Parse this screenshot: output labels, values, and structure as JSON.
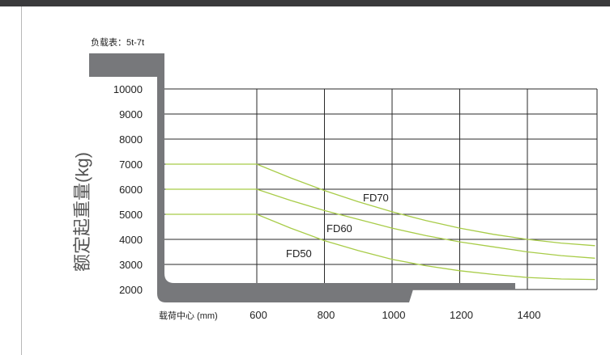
{
  "caption": "负载表：5t-7t",
  "chart_data": {
    "type": "line",
    "title": "",
    "ylabel": "额定起重量(kg)",
    "xlabel": "载荷中心 (mm)",
    "x_ticks": [
      600,
      800,
      1000,
      1200,
      1400
    ],
    "y_ticks": [
      10000,
      9000,
      8000,
      7000,
      6000,
      5000,
      4000,
      3000,
      2000
    ],
    "xlim": [
      330,
      1600
    ],
    "ylim": [
      2000,
      10000
    ],
    "grid": true,
    "series": [
      {
        "name": "FD70",
        "color": "#a8cc48",
        "x": [
          330,
          600,
          700,
          800,
          900,
          1000,
          1100,
          1200,
          1300,
          1400,
          1500,
          1600
        ],
        "y": [
          7000,
          7000,
          6450,
          5950,
          5500,
          5100,
          4750,
          4450,
          4200,
          4000,
          3850,
          3750
        ]
      },
      {
        "name": "FD60",
        "color": "#a8cc48",
        "x": [
          330,
          600,
          700,
          800,
          900,
          1000,
          1100,
          1200,
          1300,
          1400,
          1500,
          1600
        ],
        "y": [
          6000,
          6000,
          5550,
          5150,
          4800,
          4450,
          4150,
          3900,
          3700,
          3500,
          3350,
          3250
        ]
      },
      {
        "name": "FD50",
        "color": "#a8cc48",
        "x": [
          330,
          600,
          700,
          800,
          900,
          1000,
          1100,
          1200,
          1300,
          1400,
          1500,
          1600
        ],
        "y": [
          5000,
          5000,
          4450,
          3950,
          3550,
          3200,
          2950,
          2750,
          2600,
          2480,
          2420,
          2400
        ]
      }
    ]
  }
}
